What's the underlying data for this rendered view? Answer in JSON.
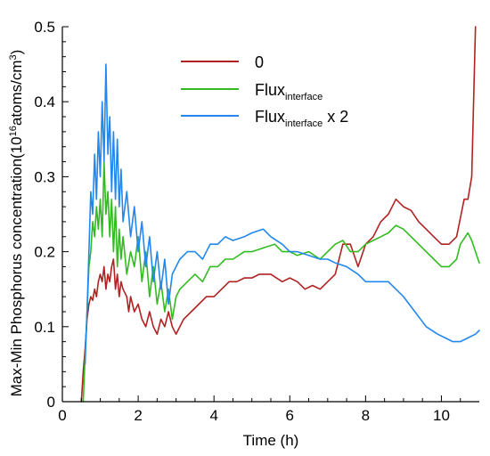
{
  "chart_data": {
    "type": "line",
    "title": "",
    "xlabel": "Time (h)",
    "ylabel": {
      "prefix": "Max-Min Phosphorus concentration(10",
      "exp": "16",
      "mid": "atoms/cm",
      "exp2": "3",
      "suffix": ")"
    },
    "xlim": [
      0,
      11
    ],
    "ylim": [
      0,
      0.5
    ],
    "xticks": [
      0,
      2,
      4,
      6,
      8,
      10
    ],
    "yticks": [
      0,
      0.1,
      0.2,
      0.3,
      0.4,
      0.5
    ],
    "xtick_labels": [
      "0",
      "2",
      "4",
      "6",
      "8",
      "10"
    ],
    "ytick_labels": [
      "0",
      "0.1",
      "0.2",
      "0.3",
      "0.4",
      "0.5"
    ],
    "grid": false,
    "legend_position": "top-center",
    "series": [
      {
        "name": "0",
        "color": "#b22222",
        "points": [
          [
            0.5,
            0.0
          ],
          [
            0.55,
            0.04
          ],
          [
            0.6,
            0.07
          ],
          [
            0.65,
            0.11
          ],
          [
            0.7,
            0.13
          ],
          [
            0.75,
            0.14
          ],
          [
            0.8,
            0.135
          ],
          [
            0.85,
            0.15
          ],
          [
            0.9,
            0.14
          ],
          [
            0.95,
            0.16
          ],
          [
            1.0,
            0.17
          ],
          [
            1.05,
            0.16
          ],
          [
            1.1,
            0.18
          ],
          [
            1.15,
            0.15
          ],
          [
            1.2,
            0.17
          ],
          [
            1.25,
            0.16
          ],
          [
            1.3,
            0.18
          ],
          [
            1.35,
            0.19
          ],
          [
            1.4,
            0.15
          ],
          [
            1.45,
            0.17
          ],
          [
            1.5,
            0.14
          ],
          [
            1.55,
            0.16
          ],
          [
            1.6,
            0.15
          ],
          [
            1.7,
            0.14
          ],
          [
            1.75,
            0.12
          ],
          [
            1.8,
            0.14
          ],
          [
            1.9,
            0.12
          ],
          [
            2.0,
            0.13
          ],
          [
            2.1,
            0.11
          ],
          [
            2.2,
            0.1
          ],
          [
            2.3,
            0.12
          ],
          [
            2.4,
            0.1
          ],
          [
            2.5,
            0.09
          ],
          [
            2.6,
            0.11
          ],
          [
            2.7,
            0.1
          ],
          [
            2.8,
            0.12
          ],
          [
            2.9,
            0.1
          ],
          [
            3.0,
            0.09
          ],
          [
            3.1,
            0.1
          ],
          [
            3.2,
            0.11
          ],
          [
            3.4,
            0.12
          ],
          [
            3.6,
            0.13
          ],
          [
            3.8,
            0.14
          ],
          [
            4.0,
            0.14
          ],
          [
            4.2,
            0.15
          ],
          [
            4.4,
            0.16
          ],
          [
            4.6,
            0.16
          ],
          [
            4.8,
            0.165
          ],
          [
            5.0,
            0.165
          ],
          [
            5.2,
            0.17
          ],
          [
            5.5,
            0.17
          ],
          [
            5.8,
            0.16
          ],
          [
            6.0,
            0.165
          ],
          [
            6.2,
            0.16
          ],
          [
            6.4,
            0.15
          ],
          [
            6.6,
            0.155
          ],
          [
            6.8,
            0.15
          ],
          [
            7.0,
            0.16
          ],
          [
            7.2,
            0.17
          ],
          [
            7.4,
            0.21
          ],
          [
            7.6,
            0.21
          ],
          [
            7.8,
            0.18
          ],
          [
            8.0,
            0.21
          ],
          [
            8.2,
            0.22
          ],
          [
            8.4,
            0.24
          ],
          [
            8.6,
            0.25
          ],
          [
            8.8,
            0.27
          ],
          [
            9.0,
            0.26
          ],
          [
            9.2,
            0.255
          ],
          [
            9.4,
            0.24
          ],
          [
            9.6,
            0.23
          ],
          [
            9.8,
            0.22
          ],
          [
            10.0,
            0.21
          ],
          [
            10.2,
            0.21
          ],
          [
            10.4,
            0.22
          ],
          [
            10.6,
            0.27
          ],
          [
            10.7,
            0.27
          ],
          [
            10.8,
            0.3
          ],
          [
            10.9,
            0.5
          ]
        ]
      },
      {
        "name": "Flux",
        "name_sub": "interface",
        "color": "#33bb22",
        "points": [
          [
            0.55,
            0.0
          ],
          [
            0.6,
            0.06
          ],
          [
            0.65,
            0.12
          ],
          [
            0.7,
            0.18
          ],
          [
            0.75,
            0.2
          ],
          [
            0.8,
            0.24
          ],
          [
            0.85,
            0.22
          ],
          [
            0.9,
            0.26
          ],
          [
            0.95,
            0.23
          ],
          [
            1.0,
            0.27
          ],
          [
            1.05,
            0.22
          ],
          [
            1.1,
            0.32
          ],
          [
            1.15,
            0.25
          ],
          [
            1.2,
            0.28
          ],
          [
            1.25,
            0.22
          ],
          [
            1.3,
            0.27
          ],
          [
            1.35,
            0.2
          ],
          [
            1.4,
            0.26
          ],
          [
            1.45,
            0.18
          ],
          [
            1.5,
            0.23
          ],
          [
            1.55,
            0.19
          ],
          [
            1.6,
            0.22
          ],
          [
            1.7,
            0.17
          ],
          [
            1.8,
            0.2
          ],
          [
            1.9,
            0.18
          ],
          [
            2.0,
            0.22
          ],
          [
            2.1,
            0.16
          ],
          [
            2.2,
            0.2
          ],
          [
            2.3,
            0.14
          ],
          [
            2.4,
            0.18
          ],
          [
            2.5,
            0.13
          ],
          [
            2.6,
            0.16
          ],
          [
            2.7,
            0.12
          ],
          [
            2.8,
            0.15
          ],
          [
            2.9,
            0.11
          ],
          [
            3.0,
            0.14
          ],
          [
            3.1,
            0.15
          ],
          [
            3.3,
            0.16
          ],
          [
            3.5,
            0.17
          ],
          [
            3.7,
            0.16
          ],
          [
            3.9,
            0.18
          ],
          [
            4.1,
            0.18
          ],
          [
            4.3,
            0.19
          ],
          [
            4.5,
            0.19
          ],
          [
            4.8,
            0.2
          ],
          [
            5.0,
            0.2
          ],
          [
            5.3,
            0.205
          ],
          [
            5.6,
            0.21
          ],
          [
            5.8,
            0.2
          ],
          [
            6.0,
            0.2
          ],
          [
            6.2,
            0.195
          ],
          [
            6.5,
            0.2
          ],
          [
            6.8,
            0.19
          ],
          [
            7.0,
            0.2
          ],
          [
            7.2,
            0.21
          ],
          [
            7.4,
            0.215
          ],
          [
            7.6,
            0.2
          ],
          [
            7.8,
            0.2
          ],
          [
            8.0,
            0.21
          ],
          [
            8.2,
            0.215
          ],
          [
            8.4,
            0.22
          ],
          [
            8.6,
            0.225
          ],
          [
            8.8,
            0.235
          ],
          [
            9.0,
            0.23
          ],
          [
            9.2,
            0.22
          ],
          [
            9.4,
            0.21
          ],
          [
            9.6,
            0.2
          ],
          [
            9.8,
            0.19
          ],
          [
            10.0,
            0.18
          ],
          [
            10.2,
            0.18
          ],
          [
            10.4,
            0.19
          ],
          [
            10.5,
            0.21
          ],
          [
            10.7,
            0.225
          ],
          [
            10.8,
            0.215
          ],
          [
            10.9,
            0.2
          ],
          [
            11.0,
            0.185
          ]
        ]
      },
      {
        "name": "Flux",
        "name_sub": "interface",
        "name_suffix": " x 2",
        "color": "#2288ee",
        "points": [
          [
            0.6,
            0.05
          ],
          [
            0.65,
            0.12
          ],
          [
            0.7,
            0.2
          ],
          [
            0.75,
            0.28
          ],
          [
            0.8,
            0.25
          ],
          [
            0.85,
            0.33
          ],
          [
            0.9,
            0.27
          ],
          [
            0.95,
            0.36
          ],
          [
            1.0,
            0.3
          ],
          [
            1.05,
            0.4
          ],
          [
            1.1,
            0.32
          ],
          [
            1.15,
            0.45
          ],
          [
            1.2,
            0.33
          ],
          [
            1.25,
            0.38
          ],
          [
            1.3,
            0.28
          ],
          [
            1.35,
            0.36
          ],
          [
            1.4,
            0.27
          ],
          [
            1.45,
            0.35
          ],
          [
            1.5,
            0.26
          ],
          [
            1.55,
            0.31
          ],
          [
            1.6,
            0.24
          ],
          [
            1.7,
            0.28
          ],
          [
            1.8,
            0.22
          ],
          [
            1.9,
            0.26
          ],
          [
            2.0,
            0.2
          ],
          [
            2.1,
            0.24
          ],
          [
            2.2,
            0.18
          ],
          [
            2.3,
            0.22
          ],
          [
            2.4,
            0.16
          ],
          [
            2.5,
            0.2
          ],
          [
            2.6,
            0.15
          ],
          [
            2.7,
            0.19
          ],
          [
            2.8,
            0.13
          ],
          [
            2.9,
            0.17
          ],
          [
            3.0,
            0.18
          ],
          [
            3.1,
            0.19
          ],
          [
            3.3,
            0.2
          ],
          [
            3.5,
            0.2
          ],
          [
            3.7,
            0.19
          ],
          [
            3.9,
            0.21
          ],
          [
            4.1,
            0.21
          ],
          [
            4.3,
            0.22
          ],
          [
            4.5,
            0.215
          ],
          [
            4.8,
            0.22
          ],
          [
            5.0,
            0.225
          ],
          [
            5.3,
            0.23
          ],
          [
            5.5,
            0.22
          ],
          [
            5.8,
            0.21
          ],
          [
            6.0,
            0.2
          ],
          [
            6.2,
            0.2
          ],
          [
            6.5,
            0.195
          ],
          [
            6.8,
            0.19
          ],
          [
            7.0,
            0.19
          ],
          [
            7.2,
            0.185
          ],
          [
            7.5,
            0.18
          ],
          [
            7.8,
            0.17
          ],
          [
            8.0,
            0.16
          ],
          [
            8.3,
            0.16
          ],
          [
            8.6,
            0.16
          ],
          [
            8.8,
            0.15
          ],
          [
            9.0,
            0.14
          ],
          [
            9.3,
            0.12
          ],
          [
            9.6,
            0.1
          ],
          [
            9.9,
            0.09
          ],
          [
            10.1,
            0.085
          ],
          [
            10.3,
            0.08
          ],
          [
            10.5,
            0.08
          ],
          [
            10.7,
            0.085
          ],
          [
            10.9,
            0.09
          ],
          [
            11.0,
            0.095
          ]
        ]
      }
    ]
  }
}
